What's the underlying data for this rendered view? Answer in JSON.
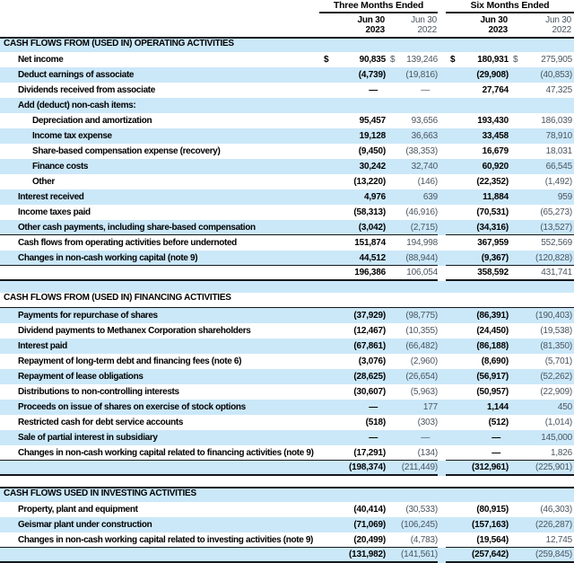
{
  "colors": {
    "row_blue": "#cbe8f9",
    "rule": "#14181c",
    "secondary_text": "#4a5560"
  },
  "table": {
    "currency_symbol": "$",
    "nil_symbol": "—",
    "col_groups": [
      {
        "label": "Three Months Ended"
      },
      {
        "label": "Six Months Ended"
      }
    ],
    "col_headers": [
      {
        "line1": "Jun 30",
        "line2": "2023",
        "emph": true
      },
      {
        "line1": "Jun 30",
        "line2": "2022",
        "emph": false
      },
      {
        "line1": "Jun 30",
        "line2": "2023",
        "emph": true
      },
      {
        "line1": "Jun 30",
        "line2": "2022",
        "emph": false
      }
    ],
    "rows": [
      {
        "type": "section",
        "label": "CASH FLOWS FROM (USED IN) OPERATING ACTIVITIES",
        "top_rule": true
      },
      {
        "type": "data",
        "label": "Net income",
        "indent": 1,
        "dollar": true,
        "values": [
          "90,835",
          "139,246",
          "180,931",
          "275,905"
        ]
      },
      {
        "type": "data",
        "label": "Deduct earnings of associate",
        "indent": 1,
        "values": [
          "(4,739)",
          "(19,816)",
          "(29,908)",
          "(40,853)"
        ]
      },
      {
        "type": "data",
        "label": "Dividends received from associate",
        "indent": 1,
        "values": [
          "—",
          "—",
          "27,764",
          "47,325"
        ]
      },
      {
        "type": "data",
        "label": "Add (deduct) non-cash items:",
        "indent": 1,
        "values": [
          "",
          "",
          "",
          ""
        ]
      },
      {
        "type": "data",
        "label": "Depreciation and amortization",
        "indent": 2,
        "values": [
          "95,457",
          "93,656",
          "193,430",
          "186,039"
        ]
      },
      {
        "type": "data",
        "label": "Income tax expense",
        "indent": 2,
        "values": [
          "19,128",
          "36,663",
          "33,458",
          "78,910"
        ]
      },
      {
        "type": "data",
        "label": "Share-based compensation expense (recovery)",
        "indent": 2,
        "values": [
          "(9,450)",
          "(38,353)",
          "16,679",
          "18,031"
        ]
      },
      {
        "type": "data",
        "label": "Finance costs",
        "indent": 2,
        "values": [
          "30,242",
          "32,740",
          "60,920",
          "66,545"
        ]
      },
      {
        "type": "data",
        "label": "Other",
        "indent": 2,
        "values": [
          "(13,220)",
          "(146)",
          "(22,352)",
          "(1,492)"
        ]
      },
      {
        "type": "data",
        "label": "Interest received",
        "indent": 1,
        "values": [
          "4,976",
          "639",
          "11,884",
          "959"
        ]
      },
      {
        "type": "data",
        "label": "Income taxes paid",
        "indent": 1,
        "values": [
          "(58,313)",
          "(46,916)",
          "(70,531)",
          "(65,273)"
        ]
      },
      {
        "type": "data",
        "label": "Other cash payments, including share-based compensation",
        "indent": 1,
        "values": [
          "(3,042)",
          "(2,715)",
          "(34,316)",
          "(13,527)"
        ],
        "rule_below": "thin"
      },
      {
        "type": "data",
        "label": "Cash flows from operating activities before undernoted",
        "indent": 1,
        "values": [
          "151,874",
          "194,998",
          "367,959",
          "552,569"
        ]
      },
      {
        "type": "data",
        "label": "Changes in non-cash working capital (note 9)",
        "indent": 1,
        "values": [
          "44,512",
          "(88,944)",
          "(9,367)",
          "(120,828)"
        ],
        "rule_below": "thin"
      },
      {
        "type": "total",
        "values": [
          "196,386",
          "106,054",
          "358,592",
          "431,741"
        ],
        "rule_below": "thick"
      },
      {
        "type": "spacer1"
      },
      {
        "type": "section",
        "label": "CASH FLOWS FROM (USED IN) FINANCING ACTIVITIES",
        "bottom_rule": true
      },
      {
        "type": "data",
        "label": "Payments for repurchase of shares",
        "indent": 1,
        "values": [
          "(37,929)",
          "(98,775)",
          "(86,391)",
          "(190,403)"
        ]
      },
      {
        "type": "data",
        "label": "Dividend payments to Methanex Corporation shareholders",
        "indent": 1,
        "values": [
          "(12,467)",
          "(10,355)",
          "(24,450)",
          "(19,538)"
        ]
      },
      {
        "type": "data",
        "label": "Interest paid",
        "indent": 1,
        "values": [
          "(67,861)",
          "(66,482)",
          "(86,188)",
          "(81,350)"
        ]
      },
      {
        "type": "data",
        "label": "Repayment of long-term debt and financing fees (note 6)",
        "indent": 1,
        "values": [
          "(3,076)",
          "(2,960)",
          "(8,690)",
          "(5,701)"
        ]
      },
      {
        "type": "data",
        "label": "Repayment of lease obligations",
        "indent": 1,
        "values": [
          "(28,625)",
          "(26,654)",
          "(56,917)",
          "(52,262)"
        ]
      },
      {
        "type": "data",
        "label": "Distributions to non-controlling interests",
        "indent": 1,
        "values": [
          "(30,607)",
          "(5,963)",
          "(50,957)",
          "(22,909)"
        ]
      },
      {
        "type": "data",
        "label": "Proceeds on issue of shares on exercise of stock options",
        "indent": 1,
        "values": [
          "—",
          "177",
          "1,144",
          "450"
        ]
      },
      {
        "type": "data",
        "label": "Restricted cash for debt service accounts",
        "indent": 1,
        "values": [
          "(518)",
          "(303)",
          "(512)",
          "(1,014)"
        ]
      },
      {
        "type": "data",
        "label": "Sale of partial interest in subsidiary",
        "indent": 1,
        "values": [
          "—",
          "—",
          "—",
          "145,000"
        ]
      },
      {
        "type": "data",
        "label": "Changes in non-cash working capital related to financing activities (note 9)",
        "indent": 1,
        "values": [
          "(17,291)",
          "(134)",
          "—",
          "1,826"
        ],
        "rule_below": "thin"
      },
      {
        "type": "total",
        "values": [
          "(198,374)",
          "(211,449)",
          "(312,961)",
          "(225,901)"
        ],
        "rule_below": "thick"
      },
      {
        "type": "spacer2"
      },
      {
        "type": "section",
        "label": "CASH FLOWS USED IN INVESTING ACTIVITIES",
        "top_rule": true
      },
      {
        "type": "data",
        "label": "Property, plant and equipment",
        "indent": 1,
        "values": [
          "(40,414)",
          "(30,533)",
          "(80,915)",
          "(46,303)"
        ]
      },
      {
        "type": "data",
        "label": "Geismar plant under construction",
        "indent": 1,
        "values": [
          "(71,069)",
          "(106,245)",
          "(157,163)",
          "(226,287)"
        ]
      },
      {
        "type": "data",
        "label": "Changes in non-cash working capital related to investing activities (note 9)",
        "indent": 1,
        "values": [
          "(20,499)",
          "(4,783)",
          "(19,564)",
          "12,745"
        ],
        "rule_below": "thin"
      },
      {
        "type": "total",
        "values": [
          "(131,982)",
          "(141,561)",
          "(257,642)",
          "(259,845)"
        ],
        "rule_below": "thick"
      }
    ]
  }
}
